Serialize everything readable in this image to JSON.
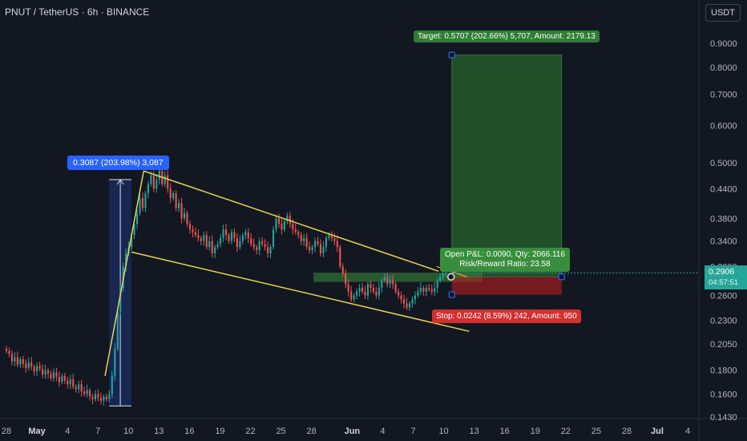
{
  "header": {
    "title": "PNUT / TetherUS · 6h · BINANCE",
    "currency_button": "USDT"
  },
  "colors": {
    "background": "#131722",
    "up": "#26a69a",
    "down": "#ef5350",
    "wedge": "#e8d44d",
    "target_zone": "#1b5e20",
    "stop_zone": "#b71c1c",
    "measure": "#2962ff"
  },
  "price_tag": {
    "price": "0.2906",
    "countdown": "04:57:51"
  },
  "labels": {
    "target": "Target: 0.5707 (202.66%) 5,707, Amount: 2179.13",
    "measure": "0.3087 (203.98%) 3,087",
    "pnl_line1": "Open P&L: 0.0090, Qty: 2066.116",
    "pnl_line2": "Risk/Reward Ratio: 23.58",
    "stop": "Stop: 0.0242 (8.59%) 242, Amount: 950"
  },
  "chart_data": {
    "type": "candlestick",
    "title": "PNUT / TetherUS · 6h · BINANCE",
    "y_scale": "log",
    "y_ticks": [
      0.9,
      0.8,
      0.7,
      0.6,
      0.5,
      0.44,
      0.38,
      0.34,
      0.3,
      0.26,
      0.23,
      0.205,
      0.18,
      0.16,
      0.143
    ],
    "y_tick_labels": [
      "0.9000",
      "0.8000",
      "0.7000",
      "0.6000",
      "0.5000",
      "0.4400",
      "0.3800",
      "0.3400",
      "0.3000",
      "0.2600",
      "0.2300",
      "0.2050",
      "0.1800",
      "0.1600",
      "0.1430"
    ],
    "x_ticks": [
      {
        "label": "28",
        "day": 0
      },
      {
        "label": "May",
        "day": 3
      },
      {
        "label": "4",
        "day": 6
      },
      {
        "label": "7",
        "day": 9
      },
      {
        "label": "10",
        "day": 12
      },
      {
        "label": "13",
        "day": 15
      },
      {
        "label": "16",
        "day": 18
      },
      {
        "label": "19",
        "day": 21
      },
      {
        "label": "22",
        "day": 24
      },
      {
        "label": "25",
        "day": 27
      },
      {
        "label": "28",
        "day": 30
      },
      {
        "label": "Jun",
        "day": 34
      },
      {
        "label": "4",
        "day": 37
      },
      {
        "label": "7",
        "day": 40
      },
      {
        "label": "10",
        "day": 43
      },
      {
        "label": "13",
        "day": 46
      },
      {
        "label": "16",
        "day": 49
      },
      {
        "label": "19",
        "day": 52
      },
      {
        "label": "22",
        "day": 55
      },
      {
        "label": "25",
        "day": 58
      },
      {
        "label": "28",
        "day": 61
      },
      {
        "label": "Jul",
        "day": 64
      },
      {
        "label": "4",
        "day": 67
      }
    ],
    "day_x_range": [
      0,
      68
    ],
    "last_price": 0.2906,
    "closes": [
      0.198,
      0.195,
      0.188,
      0.192,
      0.185,
      0.19,
      0.186,
      0.182,
      0.187,
      0.183,
      0.179,
      0.184,
      0.181,
      0.176,
      0.18,
      0.177,
      0.173,
      0.178,
      0.174,
      0.17,
      0.175,
      0.171,
      0.168,
      0.172,
      0.166,
      0.164,
      0.168,
      0.162,
      0.16,
      0.163,
      0.158,
      0.156,
      0.16,
      0.157,
      0.155,
      0.158,
      0.156,
      0.16,
      0.175,
      0.2,
      0.24,
      0.27,
      0.3,
      0.32,
      0.33,
      0.35,
      0.37,
      0.39,
      0.42,
      0.4,
      0.43,
      0.45,
      0.47,
      0.44,
      0.46,
      0.48,
      0.45,
      0.47,
      0.44,
      0.42,
      0.43,
      0.4,
      0.41,
      0.38,
      0.39,
      0.37,
      0.36,
      0.355,
      0.35,
      0.345,
      0.34,
      0.35,
      0.33,
      0.34,
      0.32,
      0.33,
      0.335,
      0.345,
      0.36,
      0.35,
      0.34,
      0.355,
      0.345,
      0.33,
      0.34,
      0.35,
      0.355,
      0.345,
      0.335,
      0.33,
      0.325,
      0.34,
      0.335,
      0.33,
      0.32,
      0.33,
      0.36,
      0.38,
      0.37,
      0.36,
      0.375,
      0.385,
      0.37,
      0.36,
      0.355,
      0.35,
      0.34,
      0.345,
      0.33,
      0.325,
      0.33,
      0.34,
      0.335,
      0.32,
      0.33,
      0.345,
      0.35,
      0.345,
      0.34,
      0.33,
      0.3,
      0.29,
      0.275,
      0.265,
      0.255,
      0.26,
      0.265,
      0.27,
      0.265,
      0.26,
      0.275,
      0.27,
      0.265,
      0.26,
      0.27,
      0.28,
      0.285,
      0.275,
      0.28,
      0.275,
      0.265,
      0.26,
      0.255,
      0.25,
      0.245,
      0.25,
      0.255,
      0.26,
      0.265,
      0.27,
      0.265,
      0.27,
      0.268,
      0.265,
      0.27,
      0.28,
      0.285,
      0.29,
      0.2906
    ],
    "wedge": {
      "upper": [
        {
          "day": 13.5,
          "price": 0.48
        },
        {
          "day": 42.5,
          "price": 0.293
        }
      ],
      "lower": [
        {
          "day": 12.3,
          "price": 0.322
        },
        {
          "day": 45.5,
          "price": 0.218
        }
      ],
      "breakout_cross": {
        "from": {
          "day": 42.3,
          "price": 0.285
        },
        "to": {
          "day": 45.3,
          "price": 0.3
        }
      }
    },
    "measure_rule": {
      "from_day": 10.1,
      "to_day": 12.3,
      "low": 0.151,
      "high": 0.46
    },
    "demand_zone": {
      "from_day": 30.2,
      "to_day": 46.8,
      "low": 0.278,
      "high": 0.291
    },
    "position": {
      "entry": 0.285,
      "target": 0.85,
      "stop": 0.261,
      "from_day": 43.8,
      "to_day": 54.6
    }
  }
}
